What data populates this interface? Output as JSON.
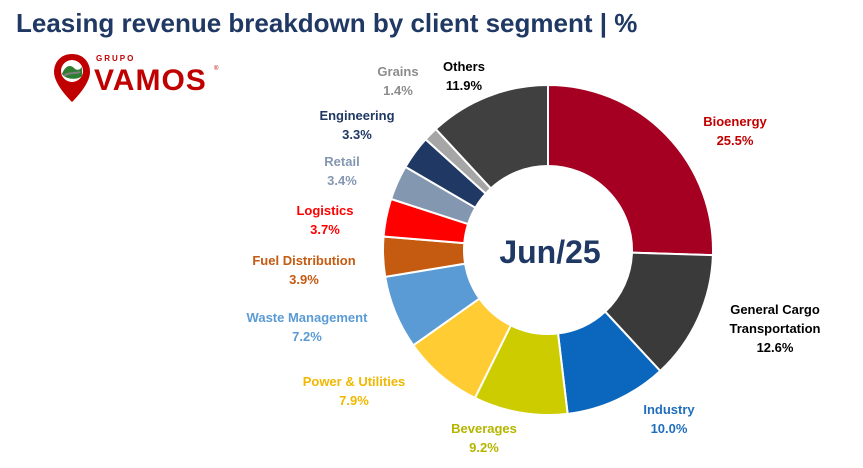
{
  "header": {
    "title": "Leasing revenue breakdown by client segment | %"
  },
  "logo": {
    "small": "GRUPO",
    "brand": "VAMOS",
    "reg": "®"
  },
  "chart_data": {
    "type": "pie",
    "center_label": "Jun/25",
    "slices": [
      {
        "name": "Bioenergy",
        "value": 25.5,
        "value_label": "25.5%",
        "color": "#a50021",
        "text_color": "#c00000"
      },
      {
        "name": "General Cargo Transportation",
        "value": 12.6,
        "value_label": "12.6%",
        "color": "#3a3a3a",
        "text_color": "#000000"
      },
      {
        "name": "Industry",
        "value": 10.0,
        "value_label": "10.0%",
        "color": "#0a67bd",
        "text_color": "#1f6ebd"
      },
      {
        "name": "Beverages",
        "value": 9.2,
        "value_label": "9.2%",
        "color": "#cccc00",
        "text_color": "#b5b500"
      },
      {
        "name": "Power & Utilities",
        "value": 7.9,
        "value_label": "7.9%",
        "color": "#ffcc33",
        "text_color": "#f2b800"
      },
      {
        "name": "Waste Management",
        "value": 7.2,
        "value_label": "7.2%",
        "color": "#5b9bd5",
        "text_color": "#5b9bd5"
      },
      {
        "name": "Fuel Distribution",
        "value": 3.9,
        "value_label": "3.9%",
        "color": "#c55a11",
        "text_color": "#c55a11"
      },
      {
        "name": "Logistics",
        "value": 3.7,
        "value_label": "3.7%",
        "color": "#ff0000",
        "text_color": "#ff0000"
      },
      {
        "name": "Retail",
        "value": 3.4,
        "value_label": "3.4%",
        "color": "#8497b0",
        "text_color": "#8497b0"
      },
      {
        "name": "Engineering",
        "value": 3.3,
        "value_label": "3.3%",
        "color": "#203864",
        "text_color": "#203864"
      },
      {
        "name": "Grains",
        "value": 1.4,
        "value_label": "1.4%",
        "color": "#a6a6a6",
        "text_color": "#8c8c8c"
      },
      {
        "name": "Others",
        "value": 11.9,
        "value_label": "11.9%",
        "color": "#404040",
        "text_color": "#000000"
      }
    ]
  }
}
